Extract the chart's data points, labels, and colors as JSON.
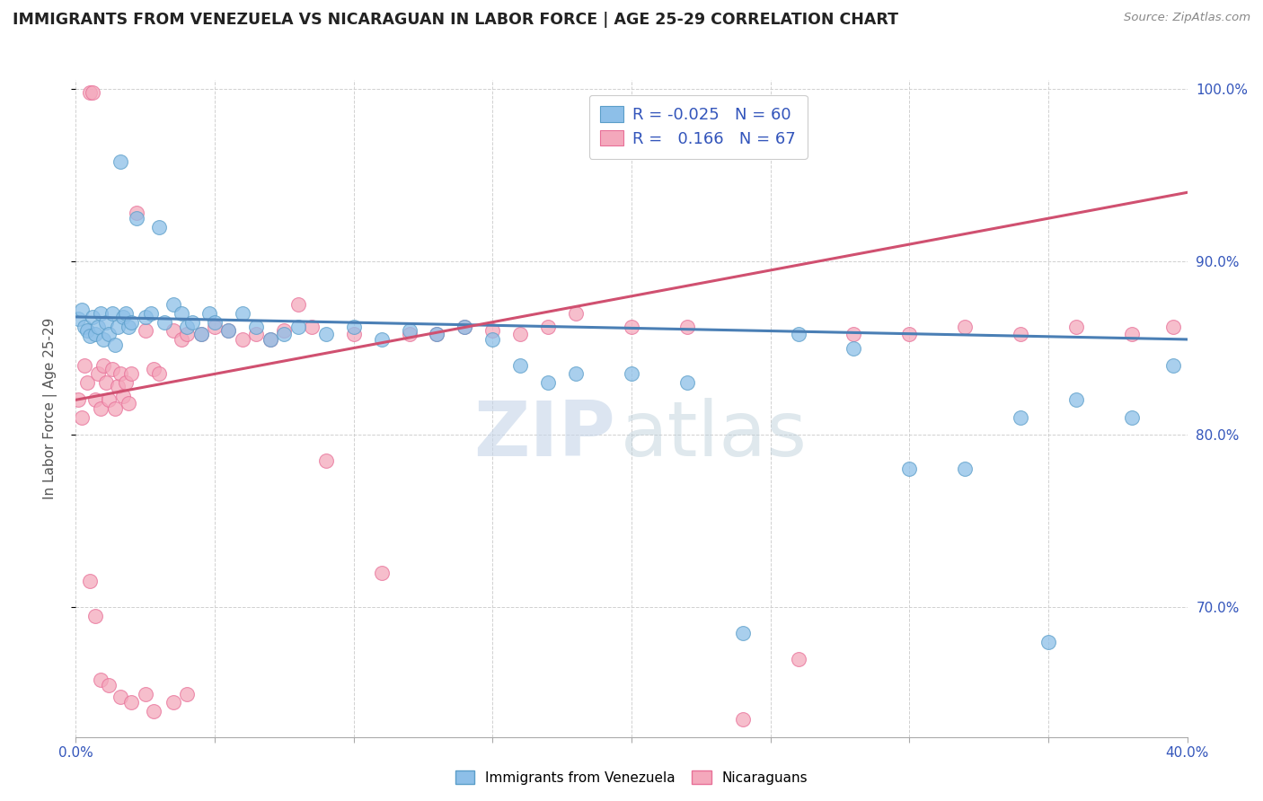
{
  "title": "IMMIGRANTS FROM VENEZUELA VS NICARAGUAN IN LABOR FORCE | AGE 25-29 CORRELATION CHART",
  "source": "Source: ZipAtlas.com",
  "ylabel": "In Labor Force | Age 25-29",
  "xlim": [
    0.0,
    0.4
  ],
  "ylim": [
    0.625,
    1.005
  ],
  "xticks": [
    0.0,
    0.05,
    0.1,
    0.15,
    0.2,
    0.25,
    0.3,
    0.35,
    0.4
  ],
  "yticks_right": [
    0.7,
    0.8,
    0.9,
    1.0
  ],
  "ytick_right_labels": [
    "70.0%",
    "80.0%",
    "90.0%",
    "100.0%"
  ],
  "blue_color": "#8dbfe8",
  "blue_edge": "#5b9ec9",
  "pink_color": "#f4a8bc",
  "pink_edge": "#e87098",
  "trend_blue": "#4a7fb5",
  "trend_pink": "#d05070",
  "background": "#ffffff",
  "grid_color": "#cccccc",
  "venezuela_x": [
    0.001,
    0.002,
    0.003,
    0.004,
    0.005,
    0.006,
    0.007,
    0.008,
    0.009,
    0.01,
    0.011,
    0.012,
    0.013,
    0.014,
    0.015,
    0.016,
    0.017,
    0.018,
    0.019,
    0.02,
    0.022,
    0.025,
    0.027,
    0.03,
    0.032,
    0.035,
    0.038,
    0.04,
    0.042,
    0.045,
    0.048,
    0.05,
    0.055,
    0.06,
    0.065,
    0.07,
    0.075,
    0.08,
    0.09,
    0.1,
    0.11,
    0.12,
    0.13,
    0.14,
    0.15,
    0.16,
    0.17,
    0.18,
    0.2,
    0.22,
    0.24,
    0.26,
    0.28,
    0.3,
    0.32,
    0.34,
    0.35,
    0.36,
    0.38,
    0.395
  ],
  "venezuela_y": [
    0.867,
    0.872,
    0.862,
    0.86,
    0.857,
    0.868,
    0.858,
    0.862,
    0.87,
    0.855,
    0.865,
    0.858,
    0.87,
    0.852,
    0.862,
    0.958,
    0.868,
    0.87,
    0.862,
    0.865,
    0.925,
    0.868,
    0.87,
    0.92,
    0.865,
    0.875,
    0.87,
    0.862,
    0.865,
    0.858,
    0.87,
    0.865,
    0.86,
    0.87,
    0.862,
    0.855,
    0.858,
    0.862,
    0.858,
    0.862,
    0.855,
    0.86,
    0.858,
    0.862,
    0.855,
    0.84,
    0.83,
    0.835,
    0.835,
    0.83,
    0.685,
    0.858,
    0.85,
    0.78,
    0.78,
    0.81,
    0.68,
    0.82,
    0.81,
    0.84
  ],
  "nicaragua_x": [
    0.001,
    0.002,
    0.003,
    0.004,
    0.005,
    0.006,
    0.007,
    0.008,
    0.009,
    0.01,
    0.011,
    0.012,
    0.013,
    0.014,
    0.015,
    0.016,
    0.017,
    0.018,
    0.019,
    0.02,
    0.022,
    0.025,
    0.028,
    0.03,
    0.035,
    0.038,
    0.04,
    0.045,
    0.05,
    0.055,
    0.06,
    0.065,
    0.07,
    0.075,
    0.08,
    0.085,
    0.09,
    0.1,
    0.11,
    0.12,
    0.13,
    0.14,
    0.15,
    0.16,
    0.17,
    0.18,
    0.2,
    0.22,
    0.24,
    0.26,
    0.28,
    0.3,
    0.32,
    0.34,
    0.36,
    0.38,
    0.395,
    0.005,
    0.007,
    0.009,
    0.012,
    0.016,
    0.02,
    0.025,
    0.028,
    0.035,
    0.04
  ],
  "nicaragua_y": [
    0.82,
    0.81,
    0.84,
    0.83,
    0.998,
    0.998,
    0.82,
    0.835,
    0.815,
    0.84,
    0.83,
    0.82,
    0.838,
    0.815,
    0.828,
    0.835,
    0.822,
    0.83,
    0.818,
    0.835,
    0.928,
    0.86,
    0.838,
    0.835,
    0.86,
    0.855,
    0.858,
    0.858,
    0.862,
    0.86,
    0.855,
    0.858,
    0.855,
    0.86,
    0.875,
    0.862,
    0.785,
    0.858,
    0.72,
    0.858,
    0.858,
    0.862,
    0.86,
    0.858,
    0.862,
    0.87,
    0.862,
    0.862,
    0.635,
    0.67,
    0.858,
    0.858,
    0.862,
    0.858,
    0.862,
    0.858,
    0.862,
    0.715,
    0.695,
    0.658,
    0.655,
    0.648,
    0.645,
    0.65,
    0.64,
    0.645,
    0.65
  ],
  "trend_ven_x0": 0.0,
  "trend_ven_y0": 0.868,
  "trend_ven_x1": 0.4,
  "trend_ven_y1": 0.855,
  "trend_nic_x0": 0.0,
  "trend_nic_y0": 0.82,
  "trend_nic_x1": 0.4,
  "trend_nic_y1": 0.94
}
